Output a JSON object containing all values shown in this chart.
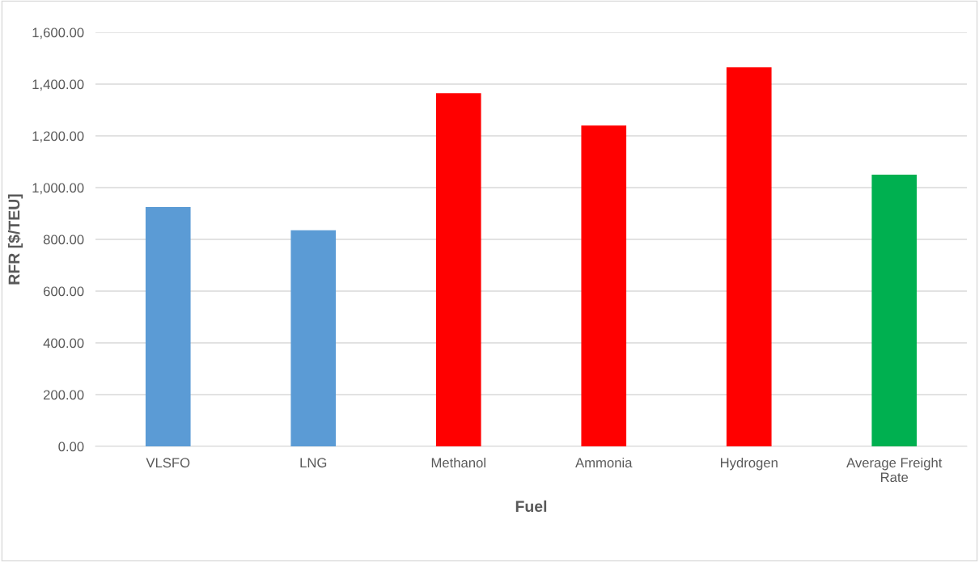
{
  "chart_data": {
    "type": "bar",
    "xlabel": "Fuel",
    "ylabel": "RFR [$/TEU]",
    "categories": [
      "VLSFO",
      "LNG",
      "Methanol",
      "Ammonia",
      "Hydrogen",
      "Average Freight Rate"
    ],
    "values": [
      925,
      835,
      1365,
      1240,
      1465,
      1050
    ],
    "colors": [
      "#5b9bd5",
      "#5b9bd5",
      "#ff0000",
      "#ff0000",
      "#ff0000",
      "#00b050"
    ],
    "ylim": [
      0,
      1600
    ],
    "yticks": [
      {
        "value": 0,
        "label": "0.00"
      },
      {
        "value": 200,
        "label": "200.00"
      },
      {
        "value": 400,
        "label": "400.00"
      },
      {
        "value": 600,
        "label": "600.00"
      },
      {
        "value": 800,
        "label": "800.00"
      },
      {
        "value": 1000,
        "label": "1,000.00"
      },
      {
        "value": 1200,
        "label": "1,200.00"
      },
      {
        "value": 1400,
        "label": "1,400.00"
      },
      {
        "value": 1600,
        "label": "1,600.00"
      }
    ],
    "grid": "y"
  }
}
